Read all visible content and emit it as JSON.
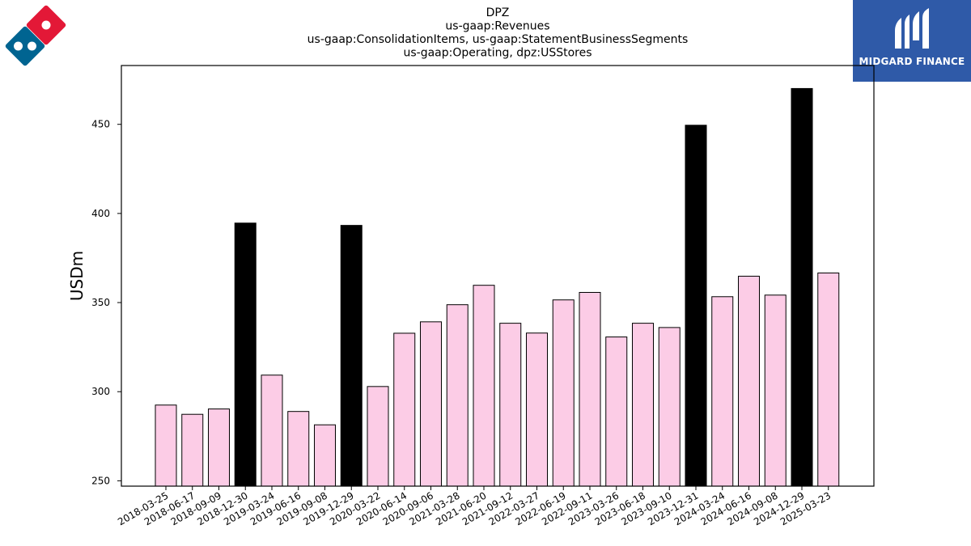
{
  "chart_data": {
    "type": "bar",
    "title_lines": [
      "DPZ",
      "us-gaap:Revenues",
      "us-gaap:ConsolidationItems, us-gaap:StatementBusinessSegments",
      "us-gaap:Operating, dpz:USStores"
    ],
    "ylabel": "USDm",
    "xlabel": "",
    "ylim": [
      247,
      483
    ],
    "yticks": [
      250,
      300,
      350,
      400,
      450
    ],
    "grid": false,
    "colors": {
      "quarter": "#fccce6",
      "annual": "#000000",
      "edge": "#000000"
    },
    "categories": [
      "2018-03-25",
      "2018-06-17",
      "2018-09-09",
      "2018-12-30",
      "2019-03-24",
      "2019-06-16",
      "2019-09-08",
      "2019-12-29",
      "2020-03-22",
      "2020-06-14",
      "2020-09-06",
      "2021-03-28",
      "2021-06-20",
      "2021-09-12",
      "2022-03-27",
      "2022-06-19",
      "2022-09-11",
      "2023-03-26",
      "2023-06-18",
      "2023-09-10",
      "2023-12-31",
      "2024-03-24",
      "2024-06-16",
      "2024-09-08",
      "2024-12-29",
      "2025-03-23"
    ],
    "values": [
      292.5,
      287.3,
      290.3,
      394.6,
      309.3,
      288.9,
      281.4,
      393.3,
      302.9,
      332.8,
      339.2,
      348.8,
      359.7,
      338.4,
      332.9,
      351.5,
      355.7,
      330.7,
      338.4,
      336.0,
      449.5,
      353.3,
      364.8,
      354.2,
      470.1,
      366.6
    ],
    "highlight": [
      false,
      false,
      false,
      true,
      false,
      false,
      false,
      true,
      false,
      false,
      false,
      false,
      false,
      false,
      false,
      false,
      false,
      false,
      false,
      false,
      true,
      false,
      false,
      false,
      true,
      false
    ]
  },
  "logos": {
    "left": {
      "name": "dominos-logo",
      "red": "#e31837",
      "blue": "#006491"
    },
    "right": {
      "name": "midgard-finance-logo",
      "text": "MIDGARD FINANCE",
      "bg": "#2f5aa8"
    }
  }
}
